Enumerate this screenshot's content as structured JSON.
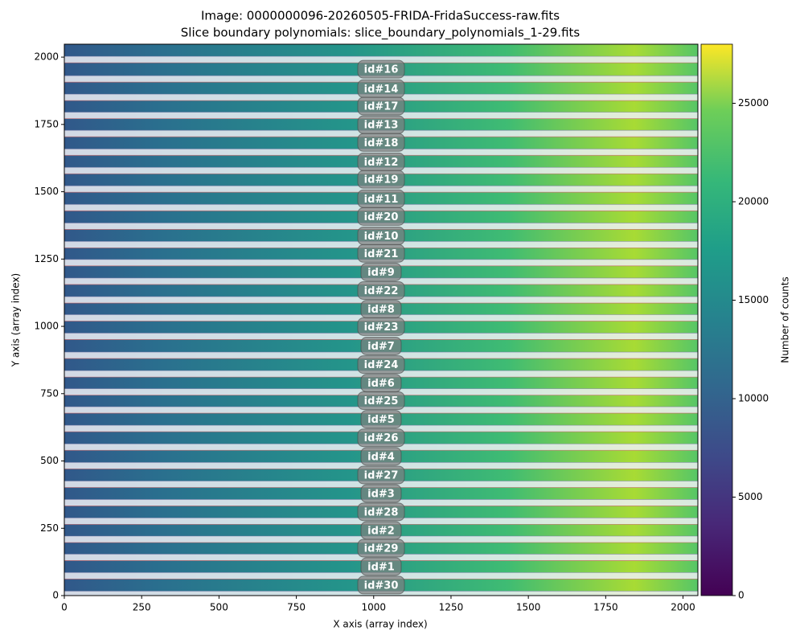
{
  "chart_data": {
    "type": "image",
    "title": "Image: 0000000096-20260505-FRIDA-FridaSuccess-raw.fits",
    "subtitle": "Slice boundary polynomials: slice_boundary_polynomials_1-29.fits",
    "xlabel": "X axis (array index)",
    "ylabel": "Y axis (array index)",
    "xlim": [
      0,
      2048
    ],
    "ylim": [
      0,
      2048
    ],
    "xticks": [
      0,
      250,
      500,
      750,
      1000,
      1250,
      1500,
      1750,
      2000
    ],
    "yticks": [
      0,
      250,
      500,
      750,
      1000,
      1250,
      1500,
      1750,
      2000
    ],
    "colorbar": {
      "label": "Number of counts",
      "colormap": "viridis",
      "lim": [
        0,
        28000
      ],
      "ticks": [
        0,
        5000,
        10000,
        15000,
        20000,
        25000
      ]
    },
    "annotations": [
      {
        "text": "id#16",
        "x": 1024,
        "y": 1955
      },
      {
        "text": "id#14",
        "x": 1024,
        "y": 1883
      },
      {
        "text": "id#17",
        "x": 1024,
        "y": 1818
      },
      {
        "text": "id#13",
        "x": 1024,
        "y": 1749
      },
      {
        "text": "id#18",
        "x": 1024,
        "y": 1683
      },
      {
        "text": "id#12",
        "x": 1024,
        "y": 1611
      },
      {
        "text": "id#19",
        "x": 1024,
        "y": 1546
      },
      {
        "text": "id#11",
        "x": 1024,
        "y": 1474
      },
      {
        "text": "id#20",
        "x": 1024,
        "y": 1408
      },
      {
        "text": "id#10",
        "x": 1024,
        "y": 1336
      },
      {
        "text": "id#21",
        "x": 1024,
        "y": 1271
      },
      {
        "text": "id#9",
        "x": 1024,
        "y": 1202
      },
      {
        "text": "id#22",
        "x": 1024,
        "y": 1133
      },
      {
        "text": "id#8",
        "x": 1024,
        "y": 1064
      },
      {
        "text": "id#23",
        "x": 1024,
        "y": 999
      },
      {
        "text": "id#7",
        "x": 1024,
        "y": 927
      },
      {
        "text": "id#24",
        "x": 1024,
        "y": 858
      },
      {
        "text": "id#6",
        "x": 1024,
        "y": 789
      },
      {
        "text": "id#25",
        "x": 1024,
        "y": 724
      },
      {
        "text": "id#5",
        "x": 1024,
        "y": 655
      },
      {
        "text": "id#26",
        "x": 1024,
        "y": 586
      },
      {
        "text": "id#4",
        "x": 1024,
        "y": 517
      },
      {
        "text": "id#27",
        "x": 1024,
        "y": 448
      },
      {
        "text": "id#3",
        "x": 1024,
        "y": 379
      },
      {
        "text": "id#28",
        "x": 1024,
        "y": 311
      },
      {
        "text": "id#2",
        "x": 1024,
        "y": 242
      },
      {
        "text": "id#29",
        "x": 1024,
        "y": 176
      },
      {
        "text": "id#1",
        "x": 1024,
        "y": 108
      },
      {
        "text": "id#30",
        "x": 1024,
        "y": 39
      }
    ]
  }
}
